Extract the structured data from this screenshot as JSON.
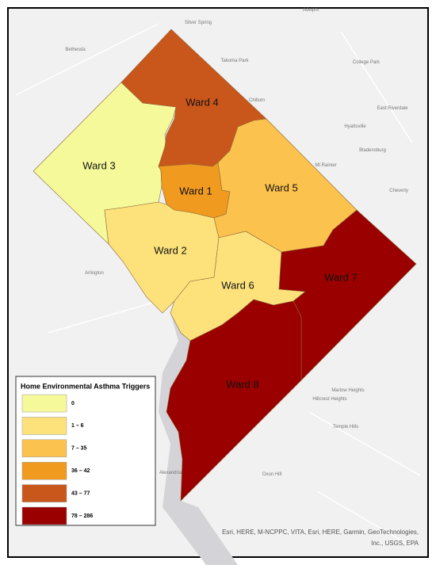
{
  "map": {
    "wards": [
      {
        "label": "Ward 3",
        "color": "#f5f99a"
      },
      {
        "label": "Ward 4",
        "color": "#c9561b"
      },
      {
        "label": "Ward 1",
        "color": "#f09a20"
      },
      {
        "label": "Ward 5",
        "color": "#fcc24e"
      },
      {
        "label": "Ward 2",
        "color": "#fde27c"
      },
      {
        "label": "Ward 6",
        "color": "#fde27c"
      },
      {
        "label": "Ward 7",
        "color": "#9a0000"
      },
      {
        "label": "Ward 8",
        "color": "#9a0000"
      }
    ],
    "places": [
      "Adelphi",
      "Silver Spring",
      "Bethesda",
      "Takoma Park",
      "College Park",
      "Chillum",
      "East Riverdale",
      "Hyattsville",
      "Bladensburg",
      "Mt Rainier",
      "Cheverly",
      "Arlington",
      "Marlow Heights",
      "Hillcrest Heights",
      "Temple Hills",
      "Alexandria",
      "Oxon Hill"
    ],
    "legend": {
      "title": "Home Environmental Asthma Triggers",
      "items": [
        {
          "label": "0",
          "color": "#f5f99a"
        },
        {
          "label": "1 – 6",
          "color": "#fde27c"
        },
        {
          "label": "7 – 35",
          "color": "#fcc24e"
        },
        {
          "label": "36 – 42",
          "color": "#f09a20"
        },
        {
          "label": "43 – 77",
          "color": "#c9561b"
        },
        {
          "label": "78 – 286",
          "color": "#9a0000"
        }
      ]
    },
    "attribution": "Esri, HERE, M-NCPPC, VITA, Esri, HERE, Garmin, GeoTechnologies, Inc., USGS, EPA"
  }
}
